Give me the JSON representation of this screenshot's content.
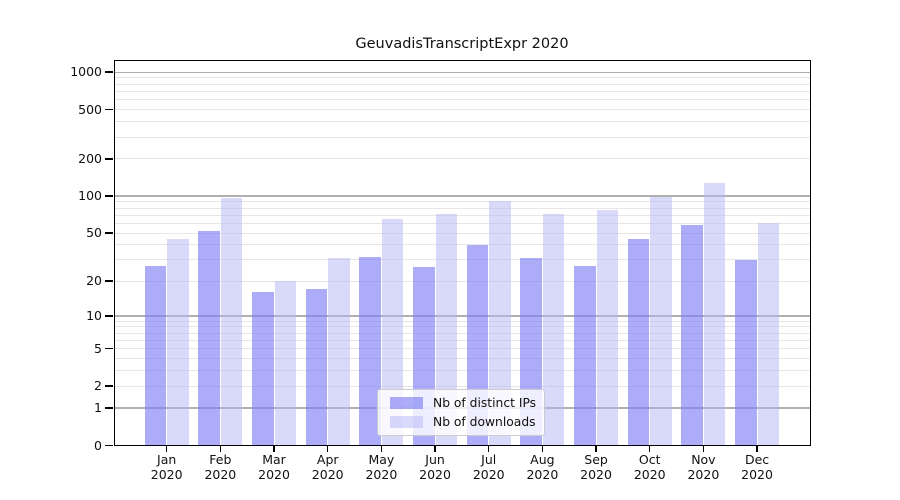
{
  "title": "GeuvadisTranscriptExpr 2020",
  "legend": {
    "items": [
      {
        "label": "Nb of distinct IPs",
        "series": "ips"
      },
      {
        "label": "Nb of downloads",
        "series": "downloads"
      }
    ]
  },
  "colors": {
    "ips_bar": "rgba(127,127,245,0.65)",
    "downloads_bar": "rgba(180,180,245,0.5)",
    "major_grid": "#b0b0b0",
    "minor_grid": "#e6e6e6",
    "axis": "#000000",
    "text": "#111111"
  },
  "axes": {
    "y_tick_labels": [
      "0",
      "1",
      "2",
      "5",
      "10",
      "20",
      "50",
      "100",
      "200",
      "500",
      "1000"
    ],
    "y_tick_values": [
      0,
      1,
      2,
      5,
      10,
      20,
      50,
      100,
      200,
      500,
      1000
    ],
    "x_year_label": "2020"
  },
  "chart_data": {
    "type": "bar",
    "title": "GeuvadisTranscriptExpr 2020",
    "categories": [
      "Jan 2020",
      "Feb 2020",
      "Mar 2020",
      "Apr 2020",
      "May 2020",
      "Jun 2020",
      "Jul 2020",
      "Aug 2020",
      "Sep 2020",
      "Oct 2020",
      "Nov 2020",
      "Dec 2020"
    ],
    "months": [
      "Jan",
      "Feb",
      "Mar",
      "Apr",
      "May",
      "Jun",
      "Jul",
      "Aug",
      "Sep",
      "Oct",
      "Nov",
      "Dec"
    ],
    "year": "2020",
    "series": [
      {
        "name": "Nb of distinct IPs",
        "values": [
          27,
          52,
          16,
          17,
          32,
          26,
          40,
          31,
          27,
          45,
          58,
          30
        ]
      },
      {
        "name": "Nb of downloads",
        "values": [
          45,
          96,
          20,
          31,
          65,
          71,
          92,
          72,
          77,
          98,
          129,
          61
        ]
      }
    ],
    "yscale": "log10(value+1)",
    "yticks": [
      0,
      1,
      2,
      5,
      10,
      20,
      50,
      100,
      200,
      500,
      1000
    ],
    "ylim": [
      0,
      1256
    ],
    "grid": "on",
    "legend_position": "lower center-right"
  }
}
